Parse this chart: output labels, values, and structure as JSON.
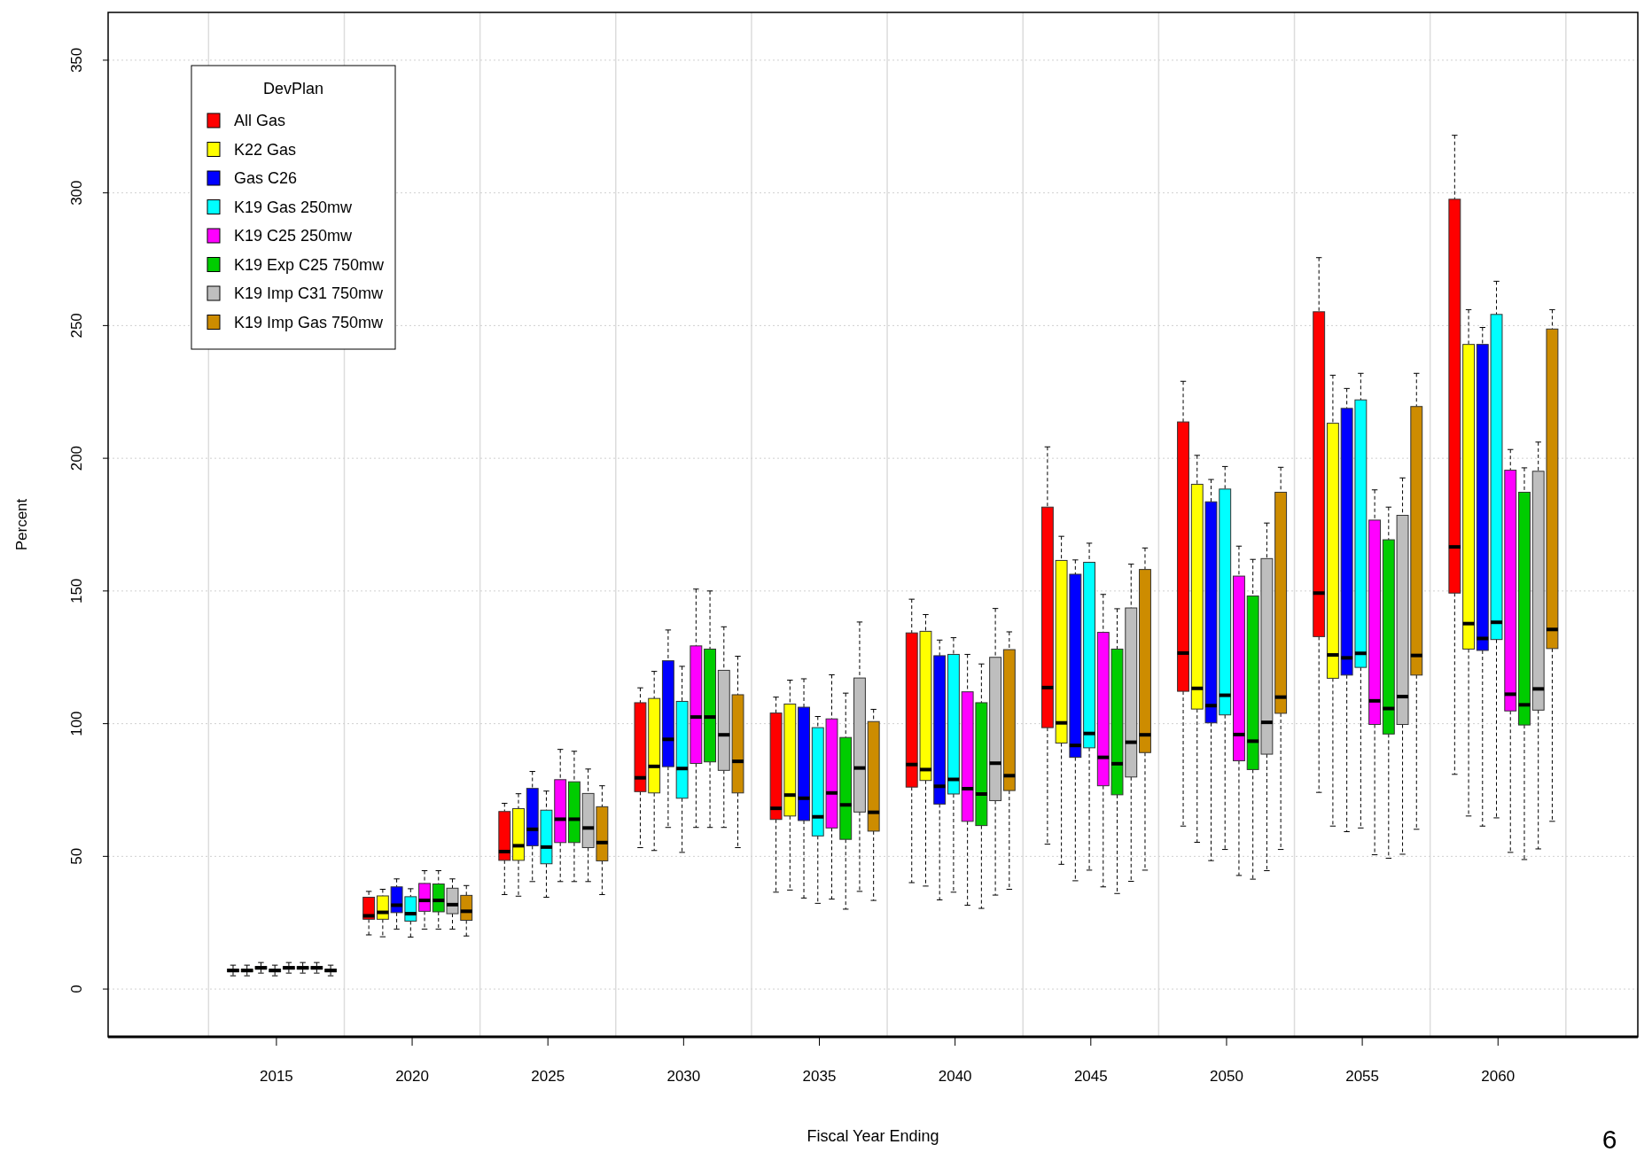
{
  "chart_data": {
    "type": "box",
    "xlabel": "Fiscal Year Ending",
    "ylabel": "Percent",
    "legend_title": "DevPlan",
    "legend": "top left",
    "grid": true,
    "ylim": [
      -18,
      368
    ],
    "yticks": [
      0,
      50,
      100,
      150,
      200,
      250,
      300,
      350
    ],
    "annotations": [
      "6"
    ],
    "categories": [
      "2015",
      "2020",
      "2025",
      "2030",
      "2035",
      "2040",
      "2045",
      "2050",
      "2055",
      "2060"
    ],
    "series": [
      {
        "name": "All Gas",
        "color": "#ff0000",
        "boxes": [
          {
            "low": 5,
            "q1": 6.5,
            "median": 7,
            "q3": 7.5,
            "high": 9
          },
          {
            "low": 20.4,
            "q1": 26.3,
            "median": 27.6,
            "q3": 34.6,
            "high": 36.8
          },
          {
            "low": 35.6,
            "q1": 48.5,
            "median": 51.8,
            "q3": 66.9,
            "high": 70
          },
          {
            "low": 53.3,
            "q1": 74.4,
            "median": 79.6,
            "q3": 107.9,
            "high": 113.5
          },
          {
            "low": 36.5,
            "q1": 63.9,
            "median": 68.1,
            "q3": 104,
            "high": 110
          },
          {
            "low": 40.1,
            "q1": 76.1,
            "median": 84.6,
            "q3": 134.2,
            "high": 146.9
          },
          {
            "low": 54.6,
            "q1": 98.5,
            "median": 113.6,
            "q3": 181.6,
            "high": 204.3
          },
          {
            "low": 61.4,
            "q1": 112.2,
            "median": 126.6,
            "q3": 213.7,
            "high": 229
          },
          {
            "low": 74.1,
            "q1": 132.8,
            "median": 149.2,
            "q3": 255.2,
            "high": 275.6
          },
          {
            "low": 80.9,
            "q1": 149.2,
            "median": 166.6,
            "q3": 297.6,
            "high": 321.7
          }
        ]
      },
      {
        "name": "K22 Gas",
        "color": "#ffff00",
        "boxes": [
          {
            "low": 5,
            "q1": 6.5,
            "median": 7,
            "q3": 7.5,
            "high": 9
          },
          {
            "low": 19.7,
            "q1": 26.3,
            "median": 28.9,
            "q3": 35.1,
            "high": 37.6
          },
          {
            "low": 35,
            "q1": 48.5,
            "median": 54,
            "q3": 68,
            "high": 73.6
          },
          {
            "low": 52.2,
            "q1": 73.9,
            "median": 83.9,
            "q3": 109.5,
            "high": 119.7
          },
          {
            "low": 37.3,
            "q1": 65.2,
            "median": 73.1,
            "q3": 107.4,
            "high": 116.4
          },
          {
            "low": 38.8,
            "q1": 78.6,
            "median": 82.7,
            "q3": 134.8,
            "high": 141.1
          },
          {
            "low": 47,
            "q1": 92.7,
            "median": 100.3,
            "q3": 161.5,
            "high": 170.6
          },
          {
            "low": 55.3,
            "q1": 105.5,
            "median": 113.3,
            "q3": 190.2,
            "high": 201.1
          },
          {
            "low": 61.4,
            "q1": 117.1,
            "median": 125.9,
            "q3": 213.2,
            "high": 231.3
          },
          {
            "low": 65.2,
            "q1": 128.1,
            "median": 137.7,
            "q3": 242.9,
            "high": 256
          }
        ]
      },
      {
        "name": "Gas C26",
        "color": "#0000ff",
        "boxes": [
          {
            "low": 6,
            "q1": 7.5,
            "median": 8,
            "q3": 8.5,
            "high": 10
          },
          {
            "low": 22.6,
            "q1": 28.8,
            "median": 31.6,
            "q3": 38.5,
            "high": 41.5
          },
          {
            "low": 40.5,
            "q1": 54,
            "median": 60.2,
            "q3": 75.6,
            "high": 82
          },
          {
            "low": 60.9,
            "q1": 83.8,
            "median": 94.1,
            "q3": 123.7,
            "high": 135.3
          },
          {
            "low": 34.3,
            "q1": 63.5,
            "median": 71.9,
            "q3": 106.2,
            "high": 116.9
          },
          {
            "low": 33.6,
            "q1": 69.7,
            "median": 76.4,
            "q3": 125.6,
            "high": 131.5
          },
          {
            "low": 40.8,
            "q1": 87.3,
            "median": 91.8,
            "q3": 156.3,
            "high": 161.7
          },
          {
            "low": 48.4,
            "q1": 100.3,
            "median": 106.8,
            "q3": 183.6,
            "high": 192
          },
          {
            "low": 59.3,
            "q1": 118.3,
            "median": 124.8,
            "q3": 218.8,
            "high": 226.3
          },
          {
            "low": 61.4,
            "q1": 127.6,
            "median": 132.1,
            "q3": 242.9,
            "high": 249.3
          }
        ]
      },
      {
        "name": "K19 Gas 250mw",
        "color": "#00ffff",
        "boxes": [
          {
            "low": 5,
            "q1": 6.5,
            "median": 7,
            "q3": 7.5,
            "high": 9
          },
          {
            "low": 19.6,
            "q1": 25.6,
            "median": 28.4,
            "q3": 34.8,
            "high": 37.8
          },
          {
            "low": 34.6,
            "q1": 47.2,
            "median": 53.5,
            "q3": 67.4,
            "high": 74.6
          },
          {
            "low": 51.5,
            "q1": 71.9,
            "median": 83.1,
            "q3": 108.4,
            "high": 121.6
          },
          {
            "low": 32.3,
            "q1": 57.7,
            "median": 64.9,
            "q3": 98.5,
            "high": 102.7
          },
          {
            "low": 36.5,
            "q1": 73.5,
            "median": 79,
            "q3": 126.1,
            "high": 132.4
          },
          {
            "low": 44.8,
            "q1": 90.9,
            "median": 96.3,
            "q3": 160.8,
            "high": 168
          },
          {
            "low": 52.6,
            "q1": 103.3,
            "median": 110.7,
            "q3": 188.4,
            "high": 196.9
          },
          {
            "low": 60.7,
            "q1": 121.2,
            "median": 126.5,
            "q3": 222,
            "high": 232
          },
          {
            "low": 64.5,
            "q1": 131.7,
            "median": 138.2,
            "q3": 254.2,
            "high": 266.7
          }
        ]
      },
      {
        "name": "K19 C25 250mw",
        "color": "#ff00ff",
        "boxes": [
          {
            "low": 6,
            "q1": 7.5,
            "median": 8,
            "q3": 8.5,
            "high": 10
          },
          {
            "low": 22.6,
            "q1": 29.3,
            "median": 33.4,
            "q3": 39.8,
            "high": 44.6
          },
          {
            "low": 40.5,
            "q1": 55.2,
            "median": 64,
            "q3": 78.9,
            "high": 90.3
          },
          {
            "low": 60.9,
            "q1": 85,
            "median": 102.5,
            "q3": 129.3,
            "high": 150.7
          },
          {
            "low": 33.9,
            "q1": 60.7,
            "median": 73.9,
            "q3": 101.8,
            "high": 118.4
          },
          {
            "low": 31.6,
            "q1": 63.2,
            "median": 75.5,
            "q3": 112,
            "high": 126.1
          },
          {
            "low": 38.5,
            "q1": 76.6,
            "median": 87.3,
            "q3": 134.4,
            "high": 148.7
          },
          {
            "low": 42.8,
            "q1": 86,
            "median": 95.9,
            "q3": 155.6,
            "high": 166.9
          },
          {
            "low": 50.6,
            "q1": 99.7,
            "median": 108.6,
            "q3": 176.7,
            "high": 188.1
          },
          {
            "low": 51.5,
            "q1": 104.8,
            "median": 111.1,
            "q3": 195.5,
            "high": 203.3
          }
        ]
      },
      {
        "name": "K19 Exp C25 750mw",
        "color": "#00cd00",
        "boxes": [
          {
            "low": 6,
            "q1": 7.5,
            "median": 8,
            "q3": 8.5,
            "high": 10
          },
          {
            "low": 22.6,
            "q1": 29.1,
            "median": 33.4,
            "q3": 39.6,
            "high": 44.6
          },
          {
            "low": 40.5,
            "q1": 55.2,
            "median": 64,
            "q3": 78.1,
            "high": 89.6
          },
          {
            "low": 60.9,
            "q1": 85.6,
            "median": 102.5,
            "q3": 128.1,
            "high": 150
          },
          {
            "low": 30.1,
            "q1": 56.4,
            "median": 69.4,
            "q3": 94.8,
            "high": 111.5
          },
          {
            "low": 30.4,
            "q1": 61.6,
            "median": 73.5,
            "q3": 107.9,
            "high": 122.5
          },
          {
            "low": 36,
            "q1": 73.2,
            "median": 84.9,
            "q3": 128.1,
            "high": 143.3
          },
          {
            "low": 41.4,
            "q1": 82.7,
            "median": 93.4,
            "q3": 148.1,
            "high": 161.9
          },
          {
            "low": 49.3,
            "q1": 96.1,
            "median": 105.7,
            "q3": 169.3,
            "high": 181.6
          },
          {
            "low": 48.8,
            "q1": 99.5,
            "median": 107.1,
            "q3": 187.2,
            "high": 196.4
          }
        ]
      },
      {
        "name": "K19 Imp C31 750mw",
        "color": "#bebebe",
        "boxes": [
          {
            "low": 6,
            "q1": 7.5,
            "median": 8,
            "q3": 8.5,
            "high": 10
          },
          {
            "low": 22.6,
            "q1": 28.4,
            "median": 31.8,
            "q3": 38,
            "high": 41.5
          },
          {
            "low": 40.5,
            "q1": 53.3,
            "median": 60.7,
            "q3": 73.7,
            "high": 82.9
          },
          {
            "low": 60.9,
            "q1": 82.4,
            "median": 95.8,
            "q3": 120.1,
            "high": 136.5
          },
          {
            "low": 36.8,
            "q1": 66.7,
            "median": 83.3,
            "q3": 117.2,
            "high": 138.3
          },
          {
            "low": 35.4,
            "q1": 71,
            "median": 85.1,
            "q3": 125,
            "high": 143.4
          },
          {
            "low": 40.6,
            "q1": 79.9,
            "median": 93,
            "q3": 143.6,
            "high": 160.1
          },
          {
            "low": 44.6,
            "q1": 88.5,
            "median": 100.5,
            "q3": 162.2,
            "high": 175.6
          },
          {
            "low": 50.8,
            "q1": 99.7,
            "median": 110.2,
            "q3": 178.5,
            "high": 192.6
          },
          {
            "low": 52.8,
            "q1": 105.1,
            "median": 113.1,
            "q3": 195.1,
            "high": 206.1
          }
        ]
      },
      {
        "name": "K19 Imp Gas 750mw",
        "color": "#cd8c00",
        "boxes": [
          {
            "low": 5,
            "q1": 6.5,
            "median": 7,
            "q3": 7.5,
            "high": 9
          },
          {
            "low": 20,
            "q1": 25.9,
            "median": 29.3,
            "q3": 35.3,
            "high": 39
          },
          {
            "low": 35.6,
            "q1": 48.3,
            "median": 55.2,
            "q3": 68.7,
            "high": 76.6
          },
          {
            "low": 53.3,
            "q1": 73.9,
            "median": 85.8,
            "q3": 110.9,
            "high": 125.4
          },
          {
            "low": 33.4,
            "q1": 59.5,
            "median": 66.6,
            "q3": 100.8,
            "high": 105.4
          },
          {
            "low": 37.6,
            "q1": 74.8,
            "median": 80.4,
            "q3": 127.9,
            "high": 134.6
          },
          {
            "low": 44.8,
            "q1": 89.1,
            "median": 95.8,
            "q3": 158.1,
            "high": 166.2
          },
          {
            "low": 52.6,
            "q1": 103.9,
            "median": 110,
            "q3": 187.2,
            "high": 196.6
          },
          {
            "low": 60.2,
            "q1": 118.3,
            "median": 125.7,
            "q3": 219.5,
            "high": 232
          },
          {
            "low": 63.2,
            "q1": 128.3,
            "median": 135.5,
            "q3": 248.7,
            "high": 256
          }
        ]
      }
    ]
  }
}
